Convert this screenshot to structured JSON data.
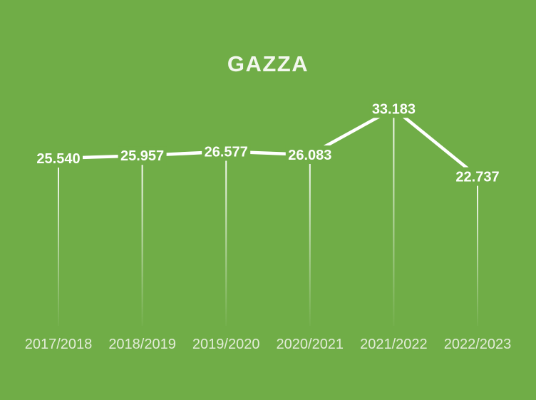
{
  "slide": {
    "background_color": "#70AD47"
  },
  "chart_data": {
    "type": "line",
    "title": "GAZZA",
    "categories": [
      "2017/2018",
      "2018/2019",
      "2019/2020",
      "2020/2021",
      "2021/2022",
      "2022/2023"
    ],
    "values": [
      25540,
      25957,
      26577,
      26083,
      33183,
      22737
    ],
    "value_labels": [
      "25.540",
      "25.957",
      "26.577",
      "26.083",
      "33.183",
      "22.737"
    ],
    "xlabel": "",
    "ylabel": "",
    "ylim": [
      0,
      38500
    ],
    "grid": false,
    "legend": false,
    "axes_visible": false,
    "data_label_position": "center",
    "drop_lines": "vertical lines from each point fading toward baseline",
    "colors": {
      "background": "#70AD47",
      "line": "#FFFFFF",
      "data_label": "#FDFEFC",
      "category_label": "#E2ECD7",
      "title": "#F3F7EE"
    }
  }
}
